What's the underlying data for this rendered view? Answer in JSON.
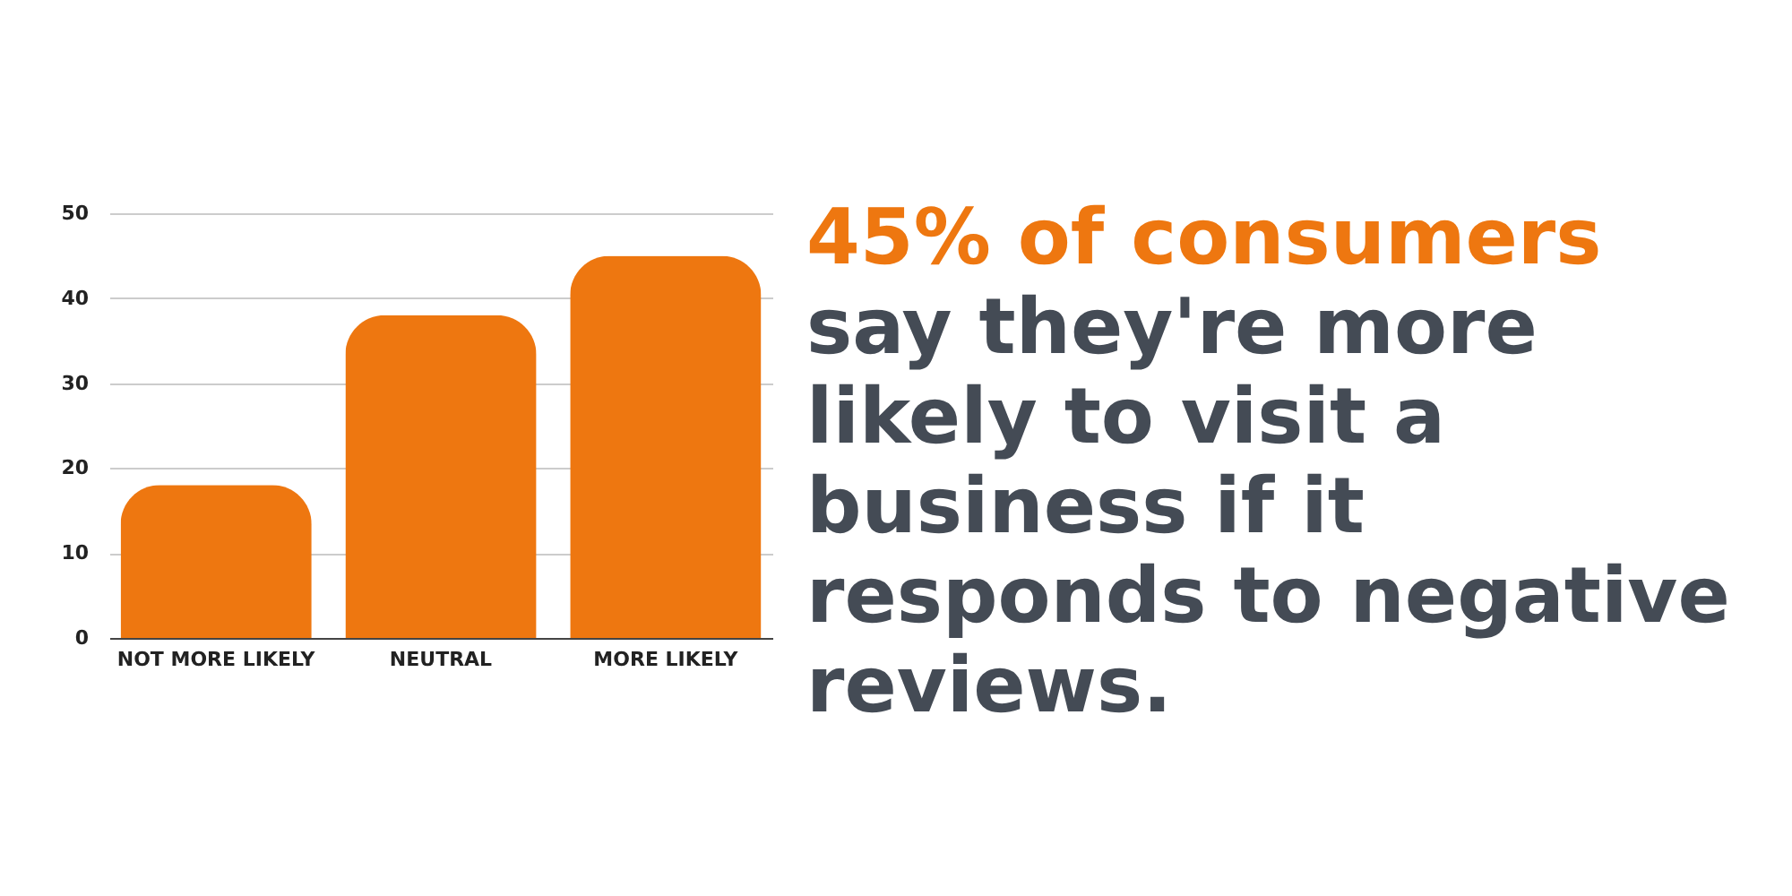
{
  "chart_data": {
    "type": "bar",
    "title": "45% of consumers",
    "subtitle": "say they're more likely to visit a business if it responds to negative reviews.",
    "categories": [
      "NOT MORE LIKELY",
      "NEUTRAL",
      "MORE LIKELY"
    ],
    "values": [
      18,
      38,
      45
    ],
    "color": "#ee7710",
    "ylim": [
      0,
      50
    ],
    "yticks": [
      0,
      10,
      20,
      30,
      40,
      50
    ],
    "grid": "y"
  }
}
